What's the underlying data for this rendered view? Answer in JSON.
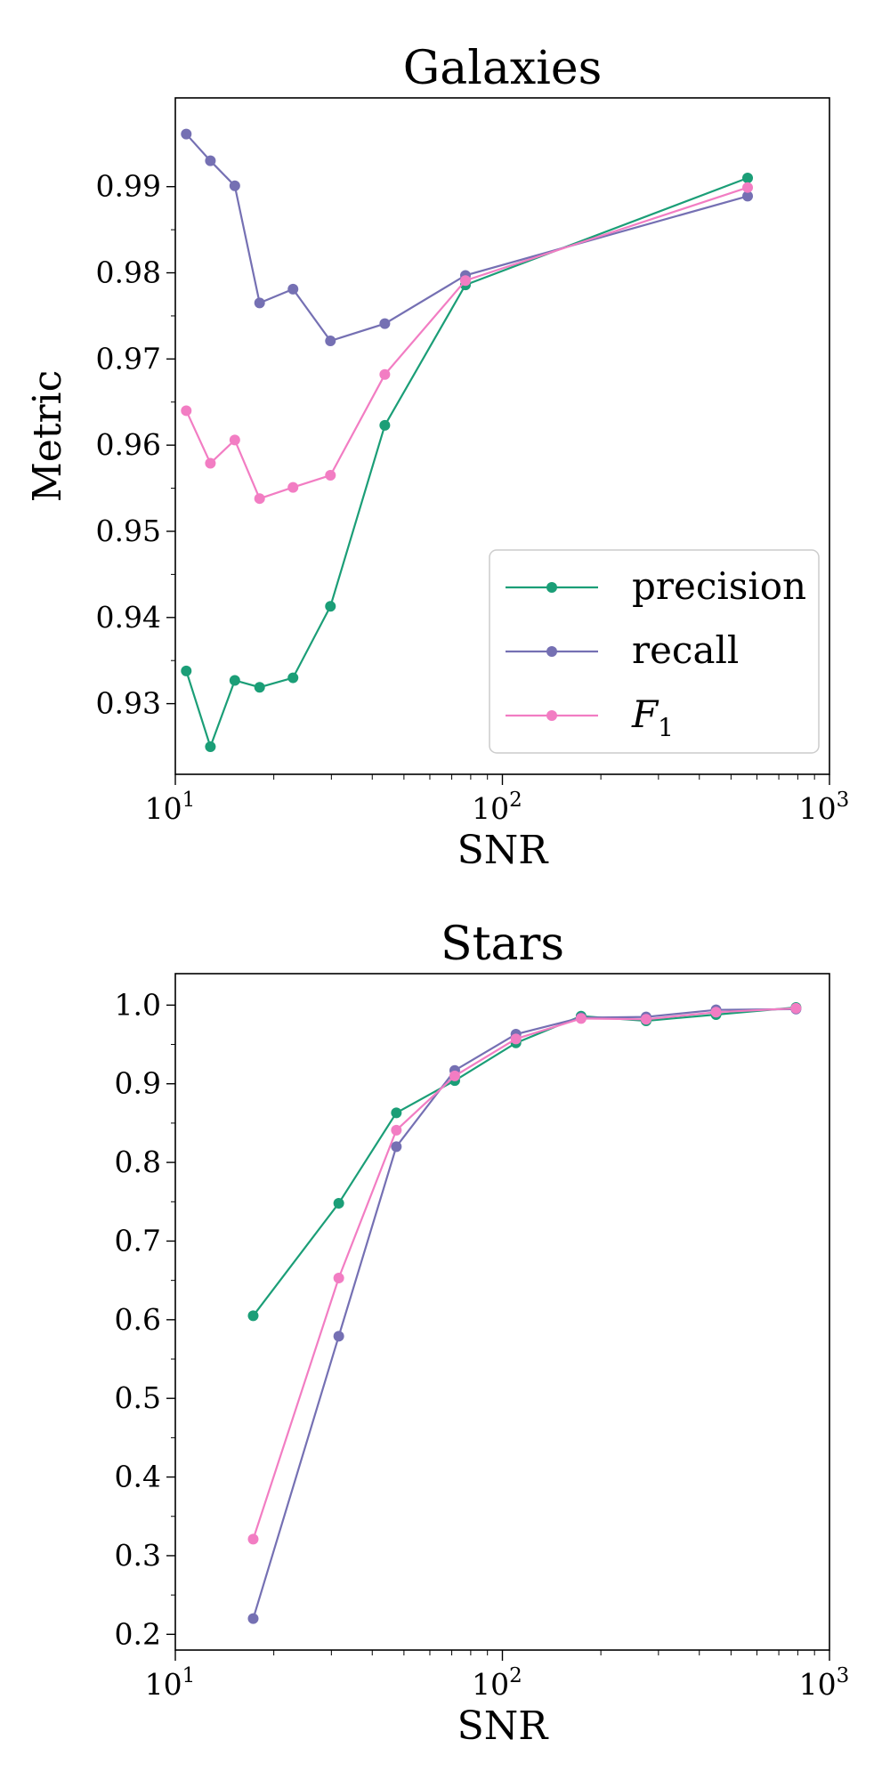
{
  "colors": {
    "precision": "#1b9e77",
    "recall": "#7570b3",
    "f1": "#f27dc3",
    "axis": "#000000"
  },
  "chart_data": [
    {
      "type": "line",
      "title": "Galaxies",
      "xlabel": "SNR",
      "ylabel": "Metric",
      "xscale": "log",
      "xlim": [
        10,
        1000
      ],
      "ylim": [
        0.9218,
        1.0003
      ],
      "yticks": [
        0.93,
        0.94,
        0.95,
        0.96,
        0.97,
        0.98,
        0.99
      ],
      "ytick_labels": [
        "0.93",
        "0.94",
        "0.95",
        "0.96",
        "0.97",
        "0.98",
        "0.99"
      ],
      "xticks": [
        10,
        100,
        1000
      ],
      "xtick_labels": [
        {
          "base": "10",
          "exp": "1"
        },
        {
          "base": "10",
          "exp": "2"
        },
        {
          "base": "10",
          "exp": "3"
        }
      ],
      "legend": {
        "position": "lower-right",
        "entries": [
          {
            "key": "precision",
            "label": "precision"
          },
          {
            "key": "recall",
            "label": "recall"
          },
          {
            "key": "f1",
            "label": "F",
            "sub": "1"
          }
        ]
      },
      "series": [
        {
          "key": "precision",
          "name": "precision",
          "x": [
            10.8,
            12.8,
            15.2,
            18.1,
            22.9,
            29.8,
            43.7,
            77.1,
            562
          ],
          "y": [
            0.9338,
            0.925,
            0.9327,
            0.9319,
            0.933,
            0.9413,
            0.9623,
            0.9786,
            0.991
          ]
        },
        {
          "key": "recall",
          "name": "recall",
          "x": [
            10.8,
            12.8,
            15.2,
            18.1,
            22.9,
            29.8,
            43.7,
            77.1,
            562
          ],
          "y": [
            0.9961,
            0.993,
            0.9901,
            0.9765,
            0.9781,
            0.9721,
            0.9741,
            0.9797,
            0.9889
          ]
        },
        {
          "key": "f1",
          "name": "F1",
          "x": [
            10.8,
            12.8,
            15.2,
            18.1,
            22.9,
            29.8,
            43.7,
            77.1,
            562
          ],
          "y": [
            0.964,
            0.9579,
            0.9606,
            0.9538,
            0.9551,
            0.9565,
            0.9682,
            0.9791,
            0.9899
          ]
        }
      ]
    },
    {
      "type": "line",
      "title": "Stars",
      "xlabel": "SNR",
      "ylabel": "",
      "xscale": "log",
      "xlim": [
        10,
        1000
      ],
      "ylim": [
        0.18,
        1.04
      ],
      "yticks": [
        0.2,
        0.3,
        0.4,
        0.5,
        0.6,
        0.7,
        0.8,
        0.9,
        1.0
      ],
      "ytick_labels": [
        "0.2",
        "0.3",
        "0.4",
        "0.5",
        "0.6",
        "0.7",
        "0.8",
        "0.9",
        "1.0"
      ],
      "xticks": [
        10,
        100,
        1000
      ],
      "xtick_labels": [
        {
          "base": "10",
          "exp": "1"
        },
        {
          "base": "10",
          "exp": "2"
        },
        {
          "base": "10",
          "exp": "3"
        }
      ],
      "series": [
        {
          "key": "precision",
          "name": "precision",
          "x": [
            17.3,
            31.6,
            47.4,
            71.5,
            110,
            174,
            275,
            450,
            790
          ],
          "y": [
            0.605,
            0.748,
            0.863,
            0.904,
            0.952,
            0.986,
            0.98,
            0.988,
            0.997
          ]
        },
        {
          "key": "recall",
          "name": "recall",
          "x": [
            17.3,
            31.6,
            47.4,
            71.5,
            110,
            174,
            275,
            450,
            790
          ],
          "y": [
            0.22,
            0.579,
            0.82,
            0.917,
            0.963,
            0.984,
            0.985,
            0.994,
            0.995
          ]
        },
        {
          "key": "f1",
          "name": "F1",
          "x": [
            17.3,
            31.6,
            47.4,
            71.5,
            110,
            174,
            275,
            450,
            790
          ],
          "y": [
            0.321,
            0.653,
            0.841,
            0.91,
            0.957,
            0.983,
            0.982,
            0.991,
            0.996
          ]
        }
      ]
    }
  ]
}
